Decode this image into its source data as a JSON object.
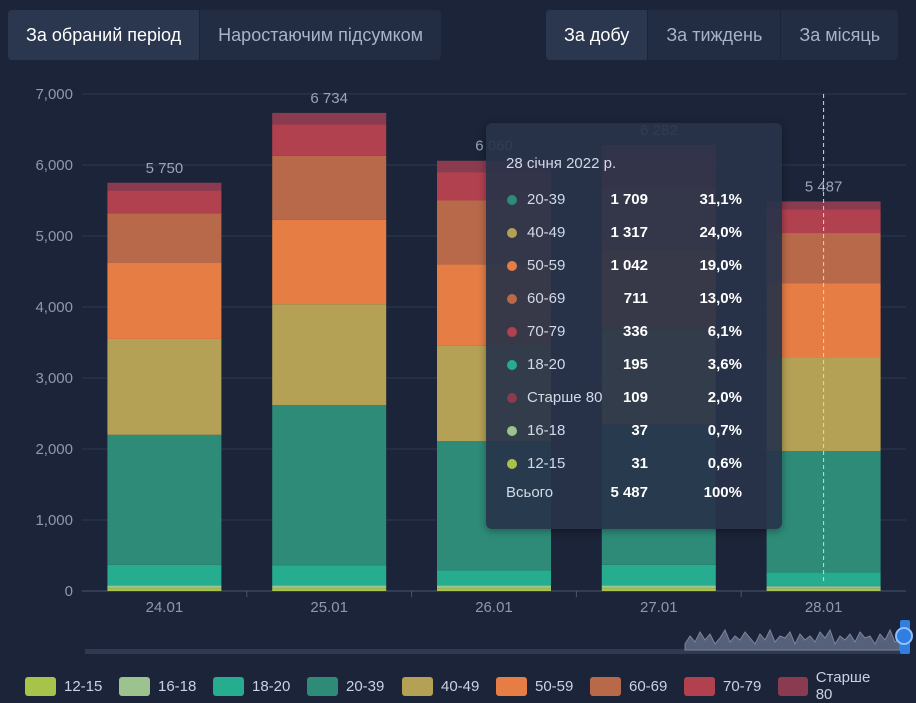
{
  "tabs_left": [
    {
      "label": "За обраний період",
      "active": true
    },
    {
      "label": "Наростаючим підсумком",
      "active": false
    }
  ],
  "tabs_right": [
    {
      "label": "За добу",
      "active": true
    },
    {
      "label": "За тиждень",
      "active": false
    },
    {
      "label": "За місяць",
      "active": false
    }
  ],
  "tooltip": {
    "title": "28 січня 2022 р.",
    "rows": [
      {
        "name": "20-39",
        "value": "1 709",
        "pct": "31,1%",
        "color": "#2e8b78"
      },
      {
        "name": "40-49",
        "value": "1 317",
        "pct": "24,0%",
        "color": "#b4a155"
      },
      {
        "name": "50-59",
        "value": "1 042",
        "pct": "19,0%",
        "color": "#e57d45"
      },
      {
        "name": "60-69",
        "value": "711",
        "pct": "13,0%",
        "color": "#b8694a"
      },
      {
        "name": "70-79",
        "value": "336",
        "pct": "6,1%",
        "color": "#b2414f"
      },
      {
        "name": "18-20",
        "value": "195",
        "pct": "3,6%",
        "color": "#26ac8e"
      },
      {
        "name": "Старше 80",
        "value": "109",
        "pct": "2,0%",
        "color": "#8a3b4f"
      },
      {
        "name": "16-18",
        "value": "37",
        "pct": "0,7%",
        "color": "#9cc38d"
      },
      {
        "name": "12-15",
        "value": "31",
        "pct": "0,6%",
        "color": "#a8c34a"
      }
    ],
    "total_label": "Всього",
    "total_value": "5 487",
    "total_pct": "100%"
  },
  "chart_data": {
    "type": "bar",
    "stacked": true,
    "categories": [
      "24.01",
      "25.01",
      "26.01",
      "27.01",
      "28.01"
    ],
    "totals": [
      "5 750",
      "6 734",
      "6 060",
      "6 282",
      "5 487"
    ],
    "ylim": [
      0,
      7000
    ],
    "yticks": [
      "0",
      "1,000",
      "2,000",
      "3,000",
      "4,000",
      "5,000",
      "6,000",
      "7,000"
    ],
    "grid": true,
    "legend_position": "bottom",
    "series": [
      {
        "name": "12-15",
        "color": "#a8c34a",
        "values": [
          40,
          40,
          40,
          40,
          31
        ]
      },
      {
        "name": "16-18",
        "color": "#9cc38d",
        "values": [
          40,
          40,
          40,
          40,
          37
        ]
      },
      {
        "name": "18-20",
        "color": "#26ac8e",
        "values": [
          290,
          280,
          210,
          290,
          195
        ]
      },
      {
        "name": "20-39",
        "color": "#2e8b78",
        "values": [
          1830,
          2260,
          1820,
          1970,
          1709
        ]
      },
      {
        "name": "40-49",
        "color": "#b4a155",
        "values": [
          1350,
          1420,
          1350,
          1340,
          1317
        ]
      },
      {
        "name": "50-59",
        "color": "#e57d45",
        "values": [
          1070,
          1190,
          1140,
          1120,
          1042
        ]
      },
      {
        "name": "60-69",
        "color": "#b8694a",
        "values": [
          700,
          900,
          900,
          880,
          711
        ]
      },
      {
        "name": "70-79",
        "color": "#b2414f",
        "values": [
          320,
          440,
          400,
          420,
          336
        ]
      },
      {
        "name": "Старше 80",
        "color": "#8a3b4f",
        "values": [
          110,
          164,
          160,
          182,
          109
        ]
      }
    ]
  }
}
